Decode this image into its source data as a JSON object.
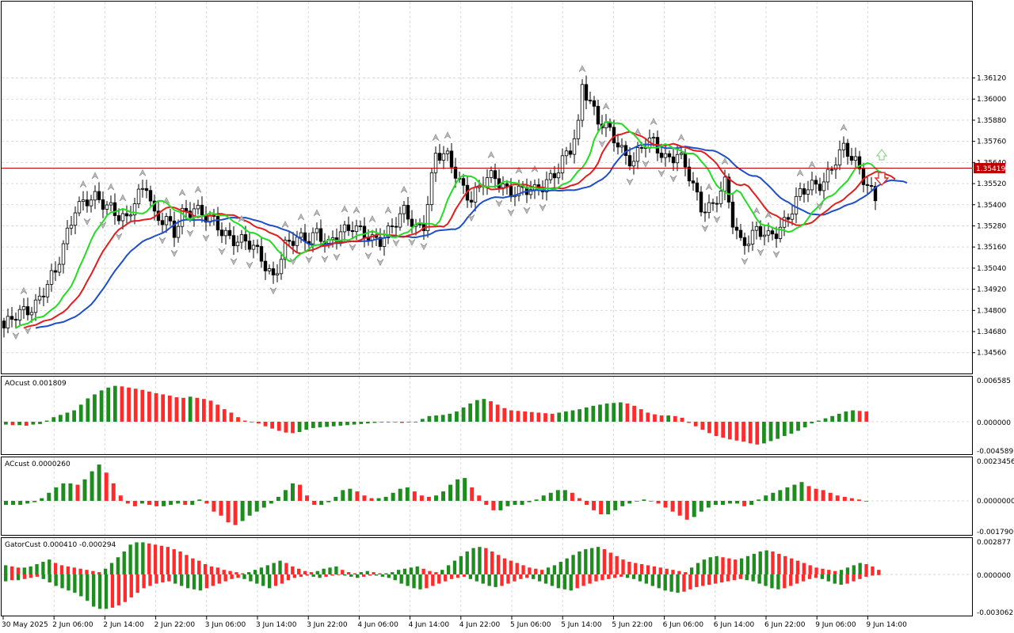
{
  "price": {
    "axis_labels": [
      "1.36120",
      "1.36000",
      "1.35880",
      "1.35760",
      "1.35640",
      "1.35520",
      "1.35400",
      "1.35280",
      "1.35160",
      "1.35040",
      "1.34920",
      "1.34800",
      "1.34680",
      "1.34560"
    ],
    "current_price": "1.35419",
    "ylim": [
      1.3446,
      1.3654
    ]
  },
  "time_axis": {
    "labels": [
      "30 May 2025",
      "2 Jun 06:00",
      "2 Jun 14:00",
      "2 Jun 22:00",
      "3 Jun 06:00",
      "3 Jun 14:00",
      "3 Jun 22:00",
      "4 Jun 06:00",
      "4 Jun 14:00",
      "4 Jun 22:00",
      "5 Jun 06:00",
      "5 Jun 14:00",
      "5 Jun 22:00",
      "6 Jun 06:00",
      "6 Jun 14:00",
      "6 Jun 22:00",
      "9 Jun 06:00",
      "9 Jun 14:00"
    ]
  },
  "panels": {
    "ao": {
      "title": "AOcust 0.001809",
      "axis_labels": [
        "0.006585",
        "0.000000",
        "-0.004589"
      ]
    },
    "ac": {
      "title": "ACcust 0.0000260",
      "axis_labels": [
        "0.0023456",
        "0.0000000",
        "-0.0017900"
      ]
    },
    "gator": {
      "title": "GatorCust 0.000410 -0.000294",
      "axis_labels": [
        "0.002877",
        "0.000000",
        "-0.003062"
      ]
    }
  },
  "colors": {
    "bull_bar": "#1e8c1e",
    "bear_bar": "#ff2a2a",
    "jaw": "#1e4fc8",
    "teeth": "#e01e1e",
    "lips": "#22dd22",
    "price_line": "#c00000",
    "grid": "#d9d9d9"
  },
  "icons": {
    "fractal_mark": "fractal-arrow-icon",
    "buy_signal": "up-arrow-icon",
    "sell_signal": "down-arrow-icon"
  },
  "chart_data": {
    "type": "candlestick",
    "title": "",
    "ylim": [
      1.3446,
      1.3654
    ],
    "anchors": [
      [
        0,
        1.347
      ],
      [
        8,
        1.3485
      ],
      [
        13,
        1.35
      ],
      [
        16,
        1.3525
      ],
      [
        18,
        1.354
      ],
      [
        23,
        1.3542
      ],
      [
        27,
        1.354
      ],
      [
        31,
        1.353
      ],
      [
        33,
        1.354
      ],
      [
        36,
        1.3553
      ],
      [
        38,
        1.3535
      ],
      [
        41,
        1.353
      ],
      [
        43,
        1.3522
      ],
      [
        45,
        1.3535
      ],
      [
        48,
        1.354
      ],
      [
        51,
        1.3532
      ],
      [
        55,
        1.3525
      ],
      [
        58,
        1.3522
      ],
      [
        61,
        1.3518
      ],
      [
        65,
        1.351
      ],
      [
        68,
        1.35
      ],
      [
        71,
        1.3515
      ],
      [
        74,
        1.352
      ],
      [
        76,
        1.3522
      ],
      [
        79,
        1.3525
      ],
      [
        82,
        1.3515
      ],
      [
        85,
        1.3525
      ],
      [
        88,
        1.353
      ],
      [
        91,
        1.3522
      ],
      [
        93,
        1.3518
      ],
      [
        95,
        1.352
      ],
      [
        98,
        1.353
      ],
      [
        101,
        1.3535
      ],
      [
        104,
        1.3525
      ],
      [
        106,
        1.353
      ],
      [
        109,
        1.357
      ],
      [
        112,
        1.3565
      ],
      [
        115,
        1.3553
      ],
      [
        118,
        1.3545
      ],
      [
        121,
        1.3552
      ],
      [
        124,
        1.3555
      ],
      [
        127,
        1.355
      ],
      [
        130,
        1.3547
      ],
      [
        134,
        1.3547
      ],
      [
        137,
        1.3555
      ],
      [
        140,
        1.356
      ],
      [
        143,
        1.357
      ],
      [
        145,
        1.3585
      ],
      [
        146,
        1.361
      ],
      [
        148,
        1.36
      ],
      [
        150,
        1.3587
      ],
      [
        153,
        1.358
      ],
      [
        156,
        1.3572
      ],
      [
        159,
        1.3565
      ],
      [
        161,
        1.3572
      ],
      [
        164,
        1.3575
      ],
      [
        167,
        1.3568
      ],
      [
        170,
        1.3568
      ],
      [
        172,
        1.356
      ],
      [
        174,
        1.355
      ],
      [
        176,
        1.354
      ],
      [
        179,
        1.354
      ],
      [
        182,
        1.355
      ],
      [
        184,
        1.353
      ],
      [
        186,
        1.352
      ],
      [
        188,
        1.3522
      ],
      [
        190,
        1.3525
      ],
      [
        193,
        1.352
      ],
      [
        195,
        1.3525
      ],
      [
        198,
        1.3535
      ],
      [
        201,
        1.3545
      ],
      [
        204,
        1.355
      ],
      [
        207,
        1.3555
      ],
      [
        210,
        1.3565
      ],
      [
        212,
        1.357
      ],
      [
        215,
        1.3565
      ],
      [
        218,
        1.3553
      ],
      [
        220,
        1.3542
      ]
    ],
    "ao_values": [
      -0.0005,
      -0.0006,
      -0.0006,
      -0.0007,
      -0.0005,
      -0.0004,
      0.0002,
      0.0008,
      0.0012,
      0.0016,
      0.002,
      0.003,
      0.0041,
      0.0048,
      0.0055,
      0.006,
      0.0063,
      0.0062,
      0.006,
      0.0058,
      0.0056,
      0.0053,
      0.005,
      0.0048,
      0.0046,
      0.0043,
      0.0042,
      0.0044,
      0.0042,
      0.004,
      0.0037,
      0.003,
      0.0022,
      0.0016,
      0.0008,
      0.0002,
      0.0,
      -0.0003,
      -0.0008,
      -0.0012,
      -0.0016,
      -0.0019,
      -0.002,
      -0.0018,
      -0.0014,
      -0.0011,
      -0.001,
      -0.0009,
      -0.0008,
      -0.0007,
      -0.0006,
      -0.0005,
      -0.0004,
      -0.0003,
      -0.0002,
      -0.0001,
      0.0,
      -0.0001,
      -0.0002,
      -0.0001,
      0.0,
      0.0005,
      0.001,
      0.0011,
      0.0012,
      0.0014,
      0.0018,
      0.0025,
      0.0032,
      0.0038,
      0.004,
      0.0036,
      0.003,
      0.0024,
      0.002,
      0.0019,
      0.0018,
      0.0017,
      0.0016,
      0.0015,
      0.0014,
      0.0016,
      0.0018,
      0.002,
      0.0022,
      0.0025,
      0.0028,
      0.003,
      0.0032,
      0.0033,
      0.0034,
      0.0032,
      0.0028,
      0.0022,
      0.0016,
      0.0013,
      0.0011,
      0.0011,
      0.001,
      0.0007,
      -0.0002,
      -0.0008,
      -0.0014,
      -0.002,
      -0.0025,
      -0.0028,
      -0.0031,
      -0.0033,
      -0.0035,
      -0.0038,
      -0.004,
      -0.0038,
      -0.0034,
      -0.003,
      -0.0025,
      -0.0021,
      -0.0016,
      -0.001,
      -0.0003,
      0.0002,
      0.0006,
      0.001,
      0.0014,
      0.0018,
      0.002,
      0.0019,
      0.0018
    ],
    "ac_values": [
      -0.0003,
      -0.0003,
      -0.0003,
      -0.0002,
      -0.0001,
      0.0002,
      0.0006,
      0.001,
      0.0013,
      0.0013,
      0.0012,
      0.0016,
      0.0022,
      0.0027,
      0.0021,
      0.0013,
      0.0004,
      -0.0002,
      -0.0004,
      -0.0002,
      -0.0003,
      -0.0004,
      -0.0004,
      -0.0003,
      -0.0002,
      -0.0003,
      -0.0003,
      0.0001,
      -0.0002,
      -0.0008,
      -0.0011,
      -0.0016,
      -0.0018,
      -0.0015,
      -0.0011,
      -0.0008,
      -0.0005,
      -0.0002,
      0.0003,
      0.0008,
      0.0013,
      0.0012,
      0.0004,
      -0.0003,
      -0.0003,
      -0.0001,
      0.0003,
      0.0008,
      0.0009,
      0.0007,
      0.0004,
      0.0002,
      0.0002,
      0.0003,
      0.0006,
      0.0009,
      0.001,
      0.0007,
      0.0004,
      0.0003,
      0.0004,
      0.0007,
      0.0012,
      0.0016,
      0.0017,
      0.001,
      0.0004,
      -0.0003,
      -0.0007,
      -0.0007,
      -0.0004,
      -0.0003,
      -0.0003,
      -0.0001,
      0.0001,
      0.0004,
      0.0006,
      0.0008,
      0.0008,
      0.0006,
      0.0002,
      -0.0003,
      -0.0007,
      -0.001,
      -0.001,
      -0.0007,
      -0.0004,
      -0.0002,
      0.0,
      0.0001,
      0.0,
      -0.0002,
      -0.0005,
      -0.0008,
      -0.0011,
      -0.0014,
      -0.0012,
      -0.0008,
      -0.0005,
      -0.0003,
      -0.0003,
      -0.0002,
      -0.0002,
      -0.0004,
      -0.0003,
      0.0001,
      0.0004,
      0.0006,
      0.0008,
      0.001,
      0.0012,
      0.0014,
      0.0011,
      0.0009,
      0.0008,
      0.0006,
      0.0004,
      0.0003,
      0.0002,
      0.0001,
      0.0
    ],
    "gator_upper": [
      0.0008,
      0.0007,
      0.0006,
      0.0006,
      0.0007,
      0.0009,
      0.0011,
      0.0013,
      0.001,
      0.0008,
      0.0007,
      0.0006,
      0.0005,
      0.0004,
      0.0003,
      0.0002,
      0.0005,
      0.001,
      0.0015,
      0.002,
      0.0026,
      0.0028,
      0.0028,
      0.0027,
      0.0026,
      0.0025,
      0.0024,
      0.0022,
      0.002,
      0.0017,
      0.0014,
      0.0012,
      0.0009,
      0.0007,
      0.0006,
      0.0004,
      0.0003,
      0.0002,
      0.0001,
      0.0002,
      0.0004,
      0.0006,
      0.0008,
      0.001,
      0.0012,
      0.001,
      0.0007,
      0.0005,
      0.0003,
      0.0002,
      0.0003,
      0.0005,
      0.0006,
      0.0007,
      0.0004,
      0.0002,
      0.0001,
      0.0002,
      0.0003,
      0.0002,
      0.0001,
      0.0001,
      0.0002,
      0.0004,
      0.0005,
      0.0006,
      0.0007,
      0.0005,
      0.0003,
      0.0002,
      0.0004,
      0.0008,
      0.0012,
      0.0016,
      0.002,
      0.0023,
      0.0024,
      0.0023,
      0.002,
      0.0017,
      0.0014,
      0.0012,
      0.001,
      0.0008,
      0.0006,
      0.0005,
      0.0004,
      0.0006,
      0.0008,
      0.0011,
      0.0014,
      0.0017,
      0.002,
      0.0022,
      0.0023,
      0.0024,
      0.0022,
      0.0019,
      0.0016,
      0.0013,
      0.0011,
      0.001,
      0.0009,
      0.0008,
      0.0007,
      0.0006,
      0.0005,
      0.0004,
      0.0003,
      0.0002,
      0.0006,
      0.001,
      0.0013,
      0.0015,
      0.0016,
      0.0015,
      0.0014,
      0.0013,
      0.0014,
      0.0016,
      0.0018,
      0.002,
      0.0021,
      0.002,
      0.0018,
      0.0016,
      0.0014,
      0.0012,
      0.001,
      0.0008,
      0.0006,
      0.0005,
      0.0004,
      0.0003,
      0.0004,
      0.0006,
      0.0008,
      0.001,
      0.0009,
      0.0007,
      0.0004
    ],
    "gator_lower": [
      -0.0006,
      -0.0005,
      -0.0005,
      -0.0004,
      -0.0003,
      -0.0002,
      -0.0004,
      -0.0007,
      -0.001,
      -0.0012,
      -0.0014,
      -0.0016,
      -0.0019,
      -0.0023,
      -0.0028,
      -0.003,
      -0.003,
      -0.0029,
      -0.0027,
      -0.0024,
      -0.002,
      -0.0016,
      -0.0012,
      -0.001,
      -0.0008,
      -0.0007,
      -0.0006,
      -0.0008,
      -0.001,
      -0.0012,
      -0.0013,
      -0.0014,
      -0.0012,
      -0.001,
      -0.0008,
      -0.0006,
      -0.0004,
      -0.0003,
      -0.0004,
      -0.0006,
      -0.0008,
      -0.001,
      -0.0012,
      -0.001,
      -0.0008,
      -0.0005,
      -0.0003,
      -0.0002,
      -0.0001,
      -0.0002,
      -0.0003,
      -0.0002,
      -0.0001,
      0.0,
      -0.0001,
      -0.0002,
      -0.0003,
      -0.0002,
      -0.0001,
      -0.0001,
      -0.0002,
      -0.0003,
      -0.0005,
      -0.0008,
      -0.001,
      -0.0012,
      -0.0013,
      -0.0012,
      -0.001,
      -0.0008,
      -0.0006,
      -0.0004,
      -0.0003,
      -0.0002,
      -0.0004,
      -0.0006,
      -0.0008,
      -0.001,
      -0.0011,
      -0.001,
      -0.0008,
      -0.0006,
      -0.0004,
      -0.0003,
      -0.0004,
      -0.0006,
      -0.0008,
      -0.001,
      -0.0012,
      -0.0013,
      -0.0014,
      -0.0012,
      -0.001,
      -0.0008,
      -0.0006,
      -0.0005,
      -0.0004,
      -0.0003,
      -0.0002,
      -0.0003,
      -0.0004,
      -0.0006,
      -0.0008,
      -0.001,
      -0.0012,
      -0.0014,
      -0.0015,
      -0.0016,
      -0.0015,
      -0.0013,
      -0.0011,
      -0.001,
      -0.0009,
      -0.0008,
      -0.0007,
      -0.0006,
      -0.0005,
      -0.0004,
      -0.0005,
      -0.0006,
      -0.0008,
      -0.001,
      -0.0012,
      -0.0013,
      -0.0012,
      -0.001,
      -0.0008,
      -0.0006,
      -0.0004,
      -0.0003,
      -0.0004,
      -0.0006,
      -0.0008,
      -0.0009,
      -0.0008,
      -0.0006,
      -0.0004,
      -0.0002,
      -0.0001,
      0.0
    ]
  }
}
